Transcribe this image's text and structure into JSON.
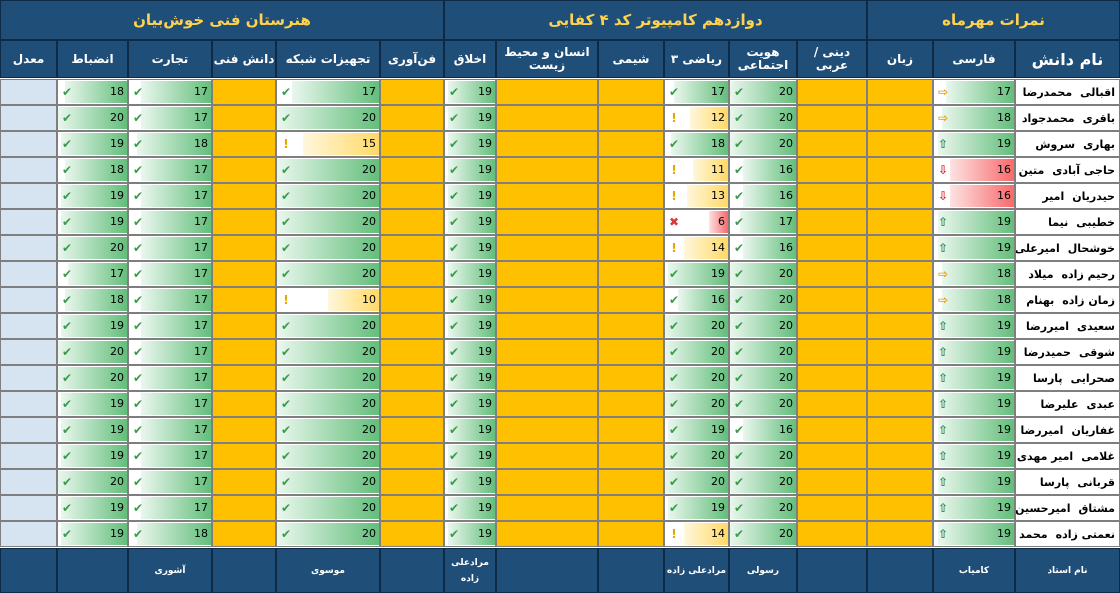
{
  "titles": {
    "school": "هنرستان فنی خوش‌بیان",
    "class": "دوازدهم کامپیوتر کد ۴ کفایی",
    "grades": "نمرات مهرماه"
  },
  "headers": {
    "name": "نام دانش",
    "farsi": "فارسی",
    "zaban": "زبان",
    "dini": "دینی / عربی",
    "hoviyat": "هویت اجتماعی",
    "riazi": "ریاضی ۳",
    "shimi": "شیمی",
    "ensan": "انسان و محیط زیست",
    "akhlagh": "اخلاق",
    "fanavari": "فن‌آوری",
    "shabake": "تجهیزات شبکه",
    "daneshfani": "دانش فنی",
    "tejarat": "تجارت",
    "enzebat": "انضباط",
    "moadel": "معدل"
  },
  "students": [
    {
      "last": "اقبالی",
      "first": "محمدرضا",
      "farsi": 17,
      "farsi_icon": "side",
      "hoviyat": 20,
      "riazi": 17,
      "akhlagh": 19,
      "shabake": 17,
      "tejarat": 17,
      "enzebat": 18
    },
    {
      "last": "باقری",
      "first": "محمدجواد",
      "farsi": 18,
      "farsi_icon": "side",
      "hoviyat": 20,
      "riazi": 12,
      "akhlagh": 19,
      "shabake": 20,
      "tejarat": 17,
      "enzebat": 20
    },
    {
      "last": "بهاری",
      "first": "سروش",
      "farsi": 19,
      "farsi_icon": "up",
      "hoviyat": 20,
      "riazi": 18,
      "akhlagh": 19,
      "shabake": 15,
      "tejarat": 18,
      "enzebat": 19
    },
    {
      "last": "حاجی آبادی",
      "first": "متین",
      "farsi": 16,
      "farsi_icon": "down",
      "hoviyat": 16,
      "riazi": 11,
      "akhlagh": 19,
      "shabake": 20,
      "tejarat": 17,
      "enzebat": 18
    },
    {
      "last": "حیدریان",
      "first": "امیر",
      "farsi": 16,
      "farsi_icon": "down",
      "hoviyat": 16,
      "riazi": 13,
      "akhlagh": 19,
      "shabake": 20,
      "tejarat": 17,
      "enzebat": 19
    },
    {
      "last": "خطیبی",
      "first": "نیما",
      "farsi": 19,
      "farsi_icon": "up",
      "hoviyat": 17,
      "riazi": 6,
      "akhlagh": 19,
      "shabake": 20,
      "tejarat": 17,
      "enzebat": 19
    },
    {
      "last": "خوشحال",
      "first": "امیرعلی",
      "farsi": 19,
      "farsi_icon": "up",
      "hoviyat": 16,
      "riazi": 14,
      "akhlagh": 19,
      "shabake": 20,
      "tejarat": 17,
      "enzebat": 20
    },
    {
      "last": "رحیم زاده",
      "first": "میلاد",
      "farsi": 18,
      "farsi_icon": "side",
      "hoviyat": 20,
      "riazi": 19,
      "akhlagh": 19,
      "shabake": 20,
      "tejarat": 17,
      "enzebat": 17
    },
    {
      "last": "زمان زاده",
      "first": "بهنام",
      "farsi": 18,
      "farsi_icon": "side",
      "hoviyat": 20,
      "riazi": 16,
      "akhlagh": 19,
      "shabake": 10,
      "tejarat": 17,
      "enzebat": 18
    },
    {
      "last": "سعیدی",
      "first": "امیررضا",
      "farsi": 19,
      "farsi_icon": "up",
      "hoviyat": 20,
      "riazi": 20,
      "akhlagh": 19,
      "shabake": 20,
      "tejarat": 17,
      "enzebat": 19
    },
    {
      "last": "شوقی",
      "first": "حمیدرضا",
      "farsi": 19,
      "farsi_icon": "up",
      "hoviyat": 20,
      "riazi": 20,
      "akhlagh": 19,
      "shabake": 20,
      "tejarat": 17,
      "enzebat": 20
    },
    {
      "last": "صحرایی",
      "first": "پارسا",
      "farsi": 19,
      "farsi_icon": "up",
      "hoviyat": 20,
      "riazi": 20,
      "akhlagh": 19,
      "shabake": 20,
      "tejarat": 17,
      "enzebat": 20
    },
    {
      "last": "عبدی",
      "first": "علیرضا",
      "farsi": 19,
      "farsi_icon": "up",
      "hoviyat": 20,
      "riazi": 20,
      "akhlagh": 19,
      "shabake": 20,
      "tejarat": 17,
      "enzebat": 19
    },
    {
      "last": "غفاریان",
      "first": "امیررضا",
      "farsi": 19,
      "farsi_icon": "up",
      "hoviyat": 16,
      "riazi": 19,
      "akhlagh": 19,
      "shabake": 20,
      "tejarat": 17,
      "enzebat": 19
    },
    {
      "last": "غلامی",
      "first": "امیر مهدی",
      "farsi": 19,
      "farsi_icon": "up",
      "hoviyat": 20,
      "riazi": 20,
      "akhlagh": 19,
      "shabake": 20,
      "tejarat": 17,
      "enzebat": 19
    },
    {
      "last": "قربانی",
      "first": "پارسا",
      "farsi": 19,
      "farsi_icon": "up",
      "hoviyat": 20,
      "riazi": 20,
      "akhlagh": 19,
      "shabake": 20,
      "tejarat": 17,
      "enzebat": 20
    },
    {
      "last": "مشتاق",
      "first": "امیرحسین",
      "farsi": 19,
      "farsi_icon": "up",
      "hoviyat": 20,
      "riazi": 19,
      "akhlagh": 19,
      "shabake": 20,
      "tejarat": 17,
      "enzebat": 19
    },
    {
      "last": "نعمتی زاده",
      "first": "محمد",
      "farsi": 19,
      "farsi_icon": "up",
      "hoviyat": 20,
      "riazi": 14,
      "akhlagh": 19,
      "shabake": 20,
      "tejarat": 18,
      "enzebat": 19
    }
  ],
  "teachers": {
    "label": "نام استاد",
    "farsi": "کامیاب",
    "hoviyat": "رسولی",
    "riazi": "مرادعلی زاده",
    "akhlagh": "مرادعلی زاده",
    "shabake": "موسوی",
    "tejarat": "آشوری"
  },
  "icons": {
    "check": "check-icon",
    "warn": "exclamation-icon",
    "cross": "cross-icon",
    "up": "arrow-up-icon",
    "side": "arrow-right-icon",
    "down": "arrow-down-icon"
  },
  "colors": {
    "header_bg": "#1f4e79",
    "title_text": "#ffd34d",
    "orange_cell": "#ffc000",
    "empty_cell": "#d6e3f1",
    "bar_green": "#63be7b",
    "bar_yellow": "#ffd966",
    "bar_red": "#f8696b"
  }
}
